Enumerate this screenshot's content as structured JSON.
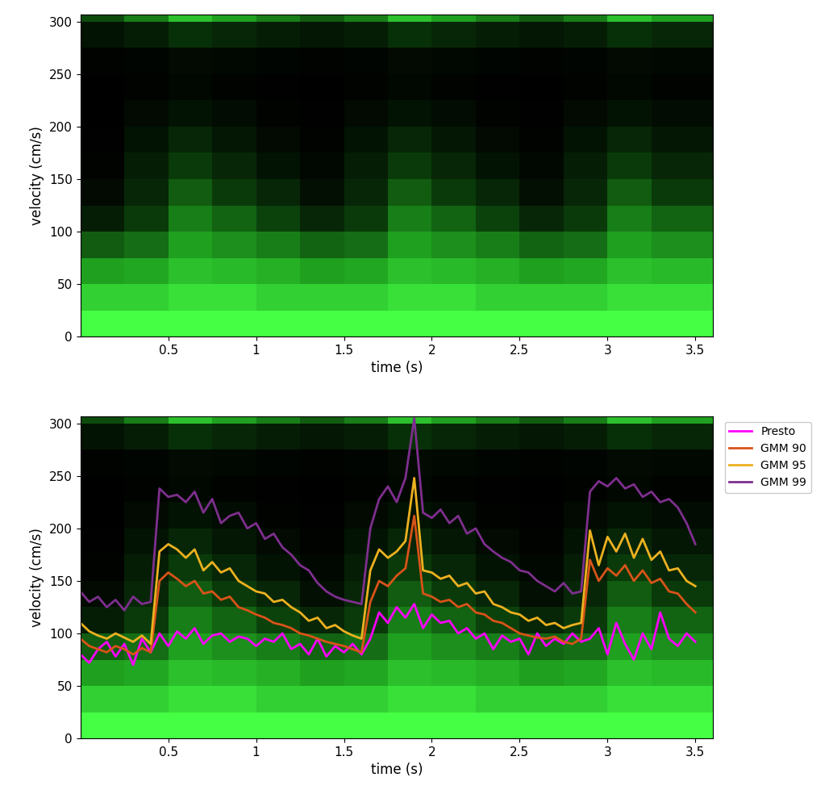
{
  "chart_data": [
    {
      "type": "heatmap",
      "xlabel": "time (s)",
      "ylabel": "velocity (cm/s)",
      "xlim": [
        0,
        3.6
      ],
      "ylim": [
        0,
        307
      ],
      "xticks": [
        0.5,
        1,
        1.5,
        2,
        2.5,
        3,
        3.5
      ],
      "yticks": [
        0,
        50,
        100,
        150,
        200,
        250,
        300
      ],
      "x_edges": [
        0,
        0.25,
        0.5,
        0.75,
        1.0,
        1.25,
        1.5,
        1.75,
        2.0,
        2.25,
        2.5,
        2.75,
        3.0,
        3.25,
        3.6
      ],
      "y_edges": [
        0,
        25,
        50,
        75,
        100,
        125,
        150,
        175,
        200,
        225,
        250,
        275,
        300,
        307
      ],
      "cells": [
        [
          0.9,
          0.9,
          0.9,
          0.9,
          0.9,
          0.9,
          0.9,
          0.9,
          0.9,
          0.9,
          0.9,
          0.9,
          0.9,
          0.9
        ],
        [
          0.75,
          0.75,
          0.8,
          0.8,
          0.75,
          0.75,
          0.75,
          0.8,
          0.8,
          0.75,
          0.75,
          0.75,
          0.8,
          0.8
        ],
        [
          0.6,
          0.62,
          0.7,
          0.68,
          0.65,
          0.6,
          0.62,
          0.7,
          0.68,
          0.65,
          0.6,
          0.62,
          0.7,
          0.68
        ],
        [
          0.4,
          0.45,
          0.6,
          0.55,
          0.5,
          0.42,
          0.45,
          0.6,
          0.55,
          0.5,
          0.42,
          0.45,
          0.6,
          0.55
        ],
        [
          0.15,
          0.3,
          0.5,
          0.42,
          0.32,
          0.2,
          0.3,
          0.5,
          0.42,
          0.32,
          0.2,
          0.3,
          0.5,
          0.42
        ],
        [
          0.05,
          0.2,
          0.4,
          0.3,
          0.2,
          0.08,
          0.2,
          0.4,
          0.3,
          0.2,
          0.08,
          0.2,
          0.4,
          0.3
        ],
        [
          0.02,
          0.15,
          0.3,
          0.2,
          0.1,
          0.04,
          0.15,
          0.3,
          0.2,
          0.1,
          0.04,
          0.15,
          0.3,
          0.2
        ],
        [
          0.01,
          0.1,
          0.2,
          0.12,
          0.05,
          0.02,
          0.1,
          0.2,
          0.12,
          0.05,
          0.02,
          0.1,
          0.2,
          0.12
        ],
        [
          0,
          0.05,
          0.1,
          0.06,
          0.02,
          0.01,
          0.05,
          0.1,
          0.06,
          0.02,
          0.01,
          0.05,
          0.1,
          0.06
        ],
        [
          0,
          0.02,
          0.04,
          0.02,
          0.01,
          0,
          0.02,
          0.04,
          0.02,
          0.01,
          0,
          0.02,
          0.04,
          0.02
        ],
        [
          0.02,
          0.03,
          0.05,
          0.04,
          0.03,
          0.02,
          0.03,
          0.05,
          0.04,
          0.03,
          0.02,
          0.03,
          0.05,
          0.04
        ],
        [
          0.1,
          0.15,
          0.25,
          0.2,
          0.15,
          0.12,
          0.15,
          0.25,
          0.2,
          0.15,
          0.12,
          0.15,
          0.25,
          0.2
        ],
        [
          0.35,
          0.5,
          0.7,
          0.6,
          0.5,
          0.4,
          0.5,
          0.7,
          0.6,
          0.5,
          0.4,
          0.5,
          0.7,
          0.6
        ]
      ]
    },
    {
      "type": "line",
      "xlabel": "time (s)",
      "ylabel": "velocity (cm/s)",
      "xlim": [
        0,
        3.6
      ],
      "ylim": [
        0,
        307
      ],
      "xticks": [
        0.5,
        1,
        1.5,
        2,
        2.5,
        3,
        3.5
      ],
      "yticks": [
        0,
        50,
        100,
        150,
        200,
        250,
        300
      ],
      "legend": "upper right",
      "x_edges": [
        0,
        0.25,
        0.5,
        0.75,
        1.0,
        1.25,
        1.5,
        1.75,
        2.0,
        2.25,
        2.5,
        2.75,
        3.0,
        3.25,
        3.6
      ],
      "y_edges": [
        0,
        25,
        50,
        75,
        100,
        125,
        150,
        175,
        200,
        225,
        250,
        275,
        300,
        307
      ],
      "cells": [
        [
          0.9,
          0.9,
          0.9,
          0.9,
          0.9,
          0.9,
          0.9,
          0.9,
          0.9,
          0.9,
          0.9,
          0.9,
          0.9,
          0.9
        ],
        [
          0.75,
          0.75,
          0.8,
          0.8,
          0.75,
          0.75,
          0.75,
          0.8,
          0.8,
          0.75,
          0.75,
          0.75,
          0.8,
          0.8
        ],
        [
          0.6,
          0.62,
          0.7,
          0.68,
          0.65,
          0.6,
          0.62,
          0.7,
          0.68,
          0.65,
          0.6,
          0.62,
          0.7,
          0.68
        ],
        [
          0.4,
          0.45,
          0.6,
          0.55,
          0.5,
          0.42,
          0.45,
          0.6,
          0.55,
          0.5,
          0.42,
          0.45,
          0.6,
          0.55
        ],
        [
          0.15,
          0.3,
          0.5,
          0.42,
          0.32,
          0.2,
          0.3,
          0.5,
          0.42,
          0.32,
          0.2,
          0.3,
          0.5,
          0.42
        ],
        [
          0.05,
          0.2,
          0.4,
          0.3,
          0.2,
          0.08,
          0.2,
          0.4,
          0.3,
          0.2,
          0.08,
          0.2,
          0.4,
          0.3
        ],
        [
          0.02,
          0.15,
          0.3,
          0.2,
          0.1,
          0.04,
          0.15,
          0.3,
          0.2,
          0.1,
          0.04,
          0.15,
          0.3,
          0.2
        ],
        [
          0.01,
          0.1,
          0.2,
          0.12,
          0.05,
          0.02,
          0.1,
          0.2,
          0.12,
          0.05,
          0.02,
          0.1,
          0.2,
          0.12
        ],
        [
          0,
          0.05,
          0.1,
          0.06,
          0.02,
          0.01,
          0.05,
          0.1,
          0.06,
          0.02,
          0.01,
          0.05,
          0.1,
          0.06
        ],
        [
          0,
          0.02,
          0.04,
          0.02,
          0.01,
          0,
          0.02,
          0.04,
          0.02,
          0.01,
          0,
          0.02,
          0.04,
          0.02
        ],
        [
          0.02,
          0.03,
          0.05,
          0.04,
          0.03,
          0.02,
          0.03,
          0.05,
          0.04,
          0.03,
          0.02,
          0.03,
          0.05,
          0.04
        ],
        [
          0.1,
          0.15,
          0.25,
          0.2,
          0.15,
          0.12,
          0.15,
          0.25,
          0.2,
          0.15,
          0.12,
          0.15,
          0.25,
          0.2
        ],
        [
          0.35,
          0.5,
          0.7,
          0.6,
          0.5,
          0.4,
          0.5,
          0.7,
          0.6,
          0.5,
          0.4,
          0.5,
          0.7,
          0.6
        ]
      ],
      "x": [
        0,
        0.05,
        0.1,
        0.15,
        0.2,
        0.25,
        0.3,
        0.35,
        0.4,
        0.45,
        0.5,
        0.55,
        0.6,
        0.65,
        0.7,
        0.75,
        0.8,
        0.85,
        0.9,
        0.95,
        1.0,
        1.05,
        1.1,
        1.15,
        1.2,
        1.25,
        1.3,
        1.35,
        1.4,
        1.45,
        1.5,
        1.55,
        1.6,
        1.65,
        1.7,
        1.75,
        1.8,
        1.85,
        1.9,
        1.95,
        2.0,
        2.05,
        2.1,
        2.15,
        2.2,
        2.25,
        2.3,
        2.35,
        2.4,
        2.45,
        2.5,
        2.55,
        2.6,
        2.65,
        2.7,
        2.75,
        2.8,
        2.85,
        2.9,
        2.95,
        3.0,
        3.05,
        3.1,
        3.15,
        3.2,
        3.25,
        3.3,
        3.35,
        3.4,
        3.45,
        3.5
      ],
      "series": [
        {
          "name": "Presto",
          "color": "#ff00ff",
          "values": [
            80,
            72,
            85,
            92,
            78,
            90,
            70,
            95,
            82,
            100,
            88,
            102,
            95,
            105,
            90,
            98,
            100,
            92,
            97,
            95,
            88,
            95,
            92,
            100,
            85,
            90,
            80,
            95,
            78,
            88,
            82,
            90,
            80,
            95,
            120,
            110,
            125,
            115,
            128,
            105,
            118,
            110,
            112,
            100,
            105,
            95,
            100,
            85,
            98,
            92,
            95,
            80,
            100,
            88,
            95,
            90,
            100,
            92,
            95,
            105,
            80,
            110,
            90,
            75,
            100,
            85,
            120,
            95,
            88,
            100,
            92
          ]
        },
        {
          "name": "GMM 90",
          "color": "#d95319",
          "values": [
            95,
            88,
            85,
            82,
            88,
            85,
            80,
            86,
            82,
            150,
            158,
            152,
            145,
            150,
            138,
            140,
            132,
            135,
            125,
            122,
            118,
            115,
            110,
            108,
            105,
            100,
            98,
            95,
            92,
            90,
            88,
            85,
            82,
            130,
            150,
            145,
            155,
            162,
            212,
            138,
            135,
            130,
            132,
            125,
            128,
            120,
            118,
            112,
            110,
            105,
            100,
            98,
            96,
            95,
            97,
            92,
            90,
            95,
            170,
            150,
            162,
            155,
            165,
            150,
            160,
            148,
            152,
            140,
            138,
            128,
            120
          ]
        },
        {
          "name": "GMM 95",
          "color": "#edb120",
          "values": [
            110,
            102,
            98,
            95,
            100,
            96,
            92,
            98,
            90,
            178,
            185,
            180,
            172,
            180,
            160,
            168,
            158,
            162,
            150,
            145,
            140,
            138,
            130,
            132,
            125,
            120,
            112,
            115,
            105,
            108,
            102,
            98,
            95,
            160,
            180,
            172,
            178,
            188,
            248,
            160,
            158,
            152,
            155,
            145,
            148,
            138,
            140,
            128,
            125,
            120,
            118,
            112,
            115,
            108,
            110,
            105,
            108,
            110,
            198,
            165,
            192,
            178,
            195,
            172,
            190,
            170,
            178,
            160,
            162,
            150,
            145
          ]
        },
        {
          "name": "GMM 99",
          "color": "#7e2f8e",
          "values": [
            140,
            130,
            135,
            125,
            132,
            122,
            135,
            128,
            130,
            238,
            230,
            232,
            225,
            235,
            215,
            228,
            205,
            212,
            215,
            200,
            205,
            190,
            195,
            182,
            175,
            165,
            160,
            148,
            140,
            135,
            132,
            130,
            128,
            200,
            228,
            240,
            225,
            248,
            305,
            215,
            210,
            218,
            205,
            212,
            195,
            200,
            185,
            178,
            172,
            168,
            160,
            158,
            150,
            145,
            140,
            148,
            138,
            140,
            235,
            245,
            240,
            248,
            238,
            242,
            230,
            235,
            225,
            228,
            220,
            205,
            185
          ]
        }
      ]
    }
  ]
}
